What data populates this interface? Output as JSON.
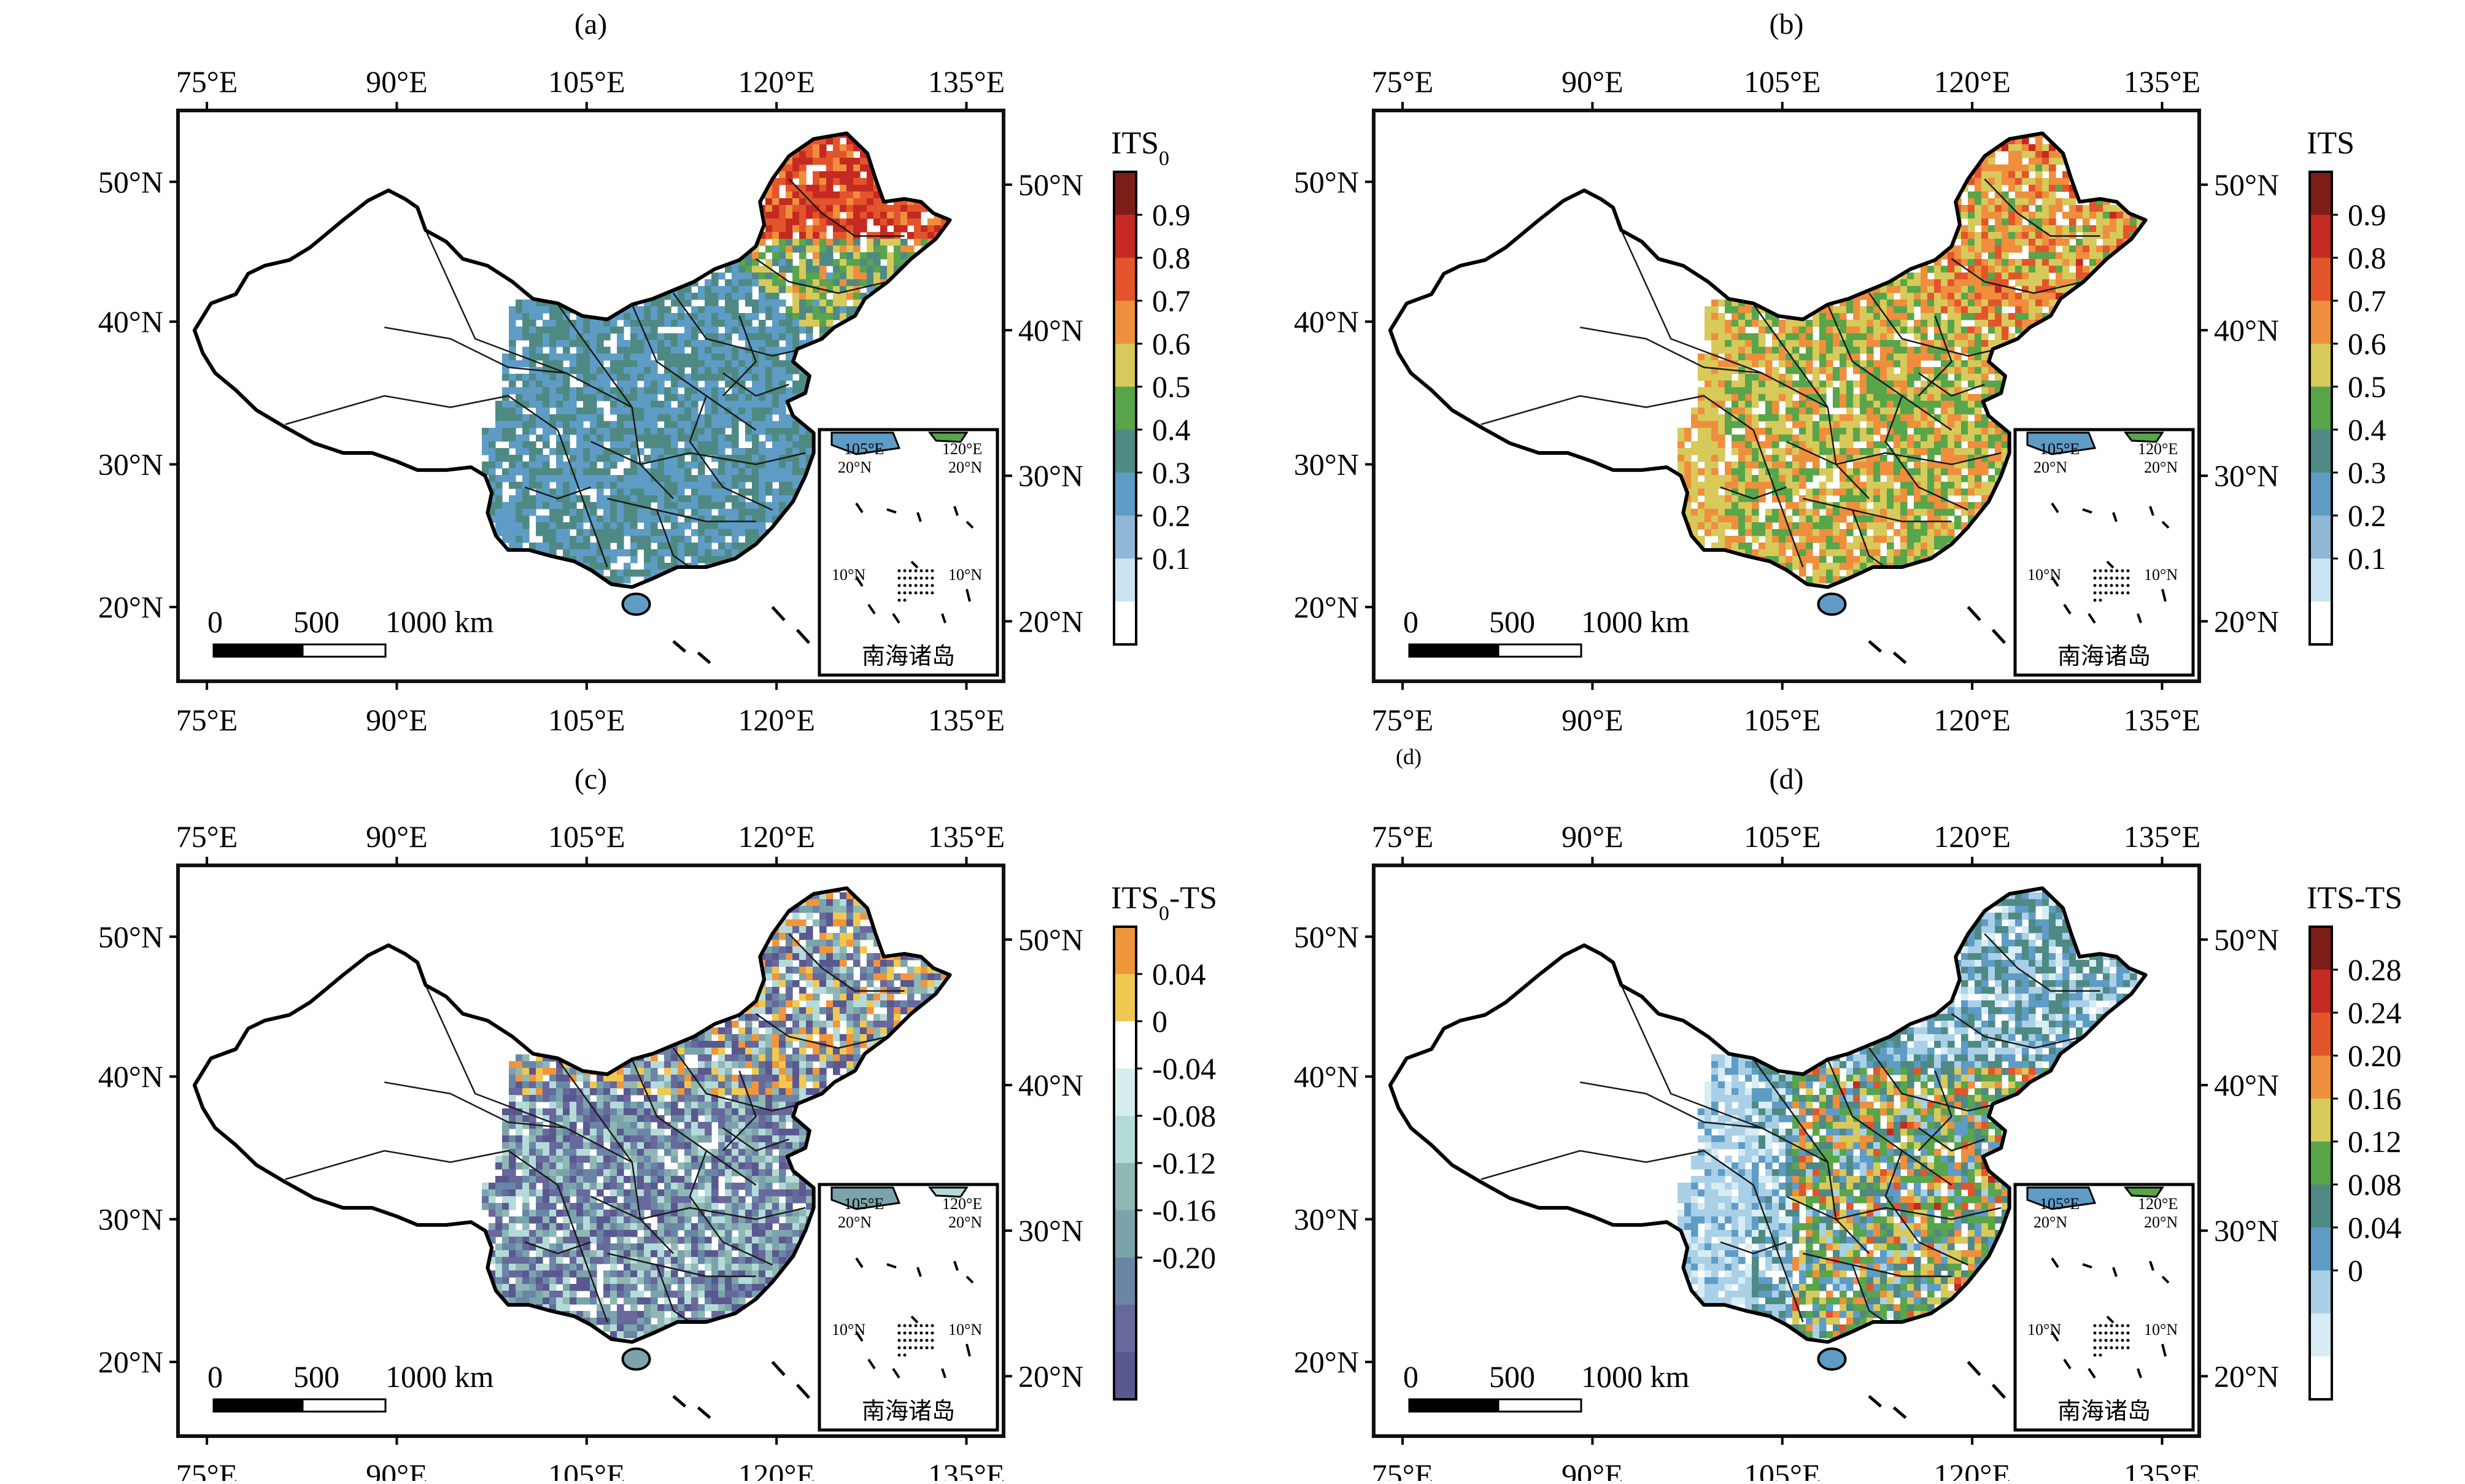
{
  "axes": {
    "lon_ticks": [
      "75°E",
      "90°E",
      "105°E",
      "120°E",
      "135°E"
    ],
    "lat_ticks": [
      "50°N",
      "40°N",
      "30°N",
      "20°N"
    ]
  },
  "scale_bar": {
    "zero": "0",
    "mid": "500",
    "end": "1000 km"
  },
  "inset": {
    "title": "南海诸岛",
    "lon_a": "105°E",
    "lon_b": "120°E",
    "lat_top": "20°N",
    "lat_bottom": "10°N"
  },
  "stray_label": "(d)",
  "panels": [
    {
      "label": "(a)",
      "colorbar": {
        "title": "ITS",
        "title_sub": "0",
        "title_suffix": "",
        "tick_labels": [
          "0.9",
          "0.8",
          "0.7",
          "0.6",
          "0.5",
          "0.4",
          "0.3",
          "0.2",
          "0.1"
        ]
      }
    },
    {
      "label": "(b)",
      "colorbar": {
        "title": "ITS",
        "title_sub": "",
        "title_suffix": "",
        "tick_labels": [
          "0.9",
          "0.8",
          "0.7",
          "0.6",
          "0.5",
          "0.4",
          "0.3",
          "0.2",
          "0.1"
        ]
      }
    },
    {
      "label": "(c)",
      "colorbar": {
        "title": "ITS",
        "title_sub": "0",
        "title_suffix": "-TS",
        "tick_labels": [
          "0.04",
          "0",
          "-0.04",
          "-0.08",
          "-0.12",
          "-0.16",
          "-0.20"
        ]
      }
    },
    {
      "label": "(d)",
      "colorbar": {
        "title": "ITS-TS",
        "title_sub": "",
        "title_suffix": "",
        "tick_labels": [
          "0.28",
          "0.24",
          "0.20",
          "0.16",
          "0.12",
          "0.08",
          "0.04",
          "0"
        ]
      }
    }
  ],
  "colors": {
    "scale_a": [
      "#ffffff",
      "#c9e3f0",
      "#8fb7d8",
      "#5e9cc6",
      "#4e8a83",
      "#58a54a",
      "#d7c95a",
      "#ef8e3c",
      "#e4542b",
      "#c42a22",
      "#7d1d18"
    ],
    "scale_c": [
      "#5a5890",
      "#67689c",
      "#6a86a6",
      "#7ba3ab",
      "#8fb8b5",
      "#b5dbd8",
      "#d6edee",
      "#ffffff",
      "#f0c850",
      "#f0953c"
    ],
    "scale_d": [
      "#ffffff",
      "#d8ecf4",
      "#a9d0e6",
      "#5e9cc6",
      "#4e8a83",
      "#58a54a",
      "#d7c95a",
      "#ef8e3c",
      "#e4542b",
      "#c42a22",
      "#7d1d18"
    ]
  }
}
